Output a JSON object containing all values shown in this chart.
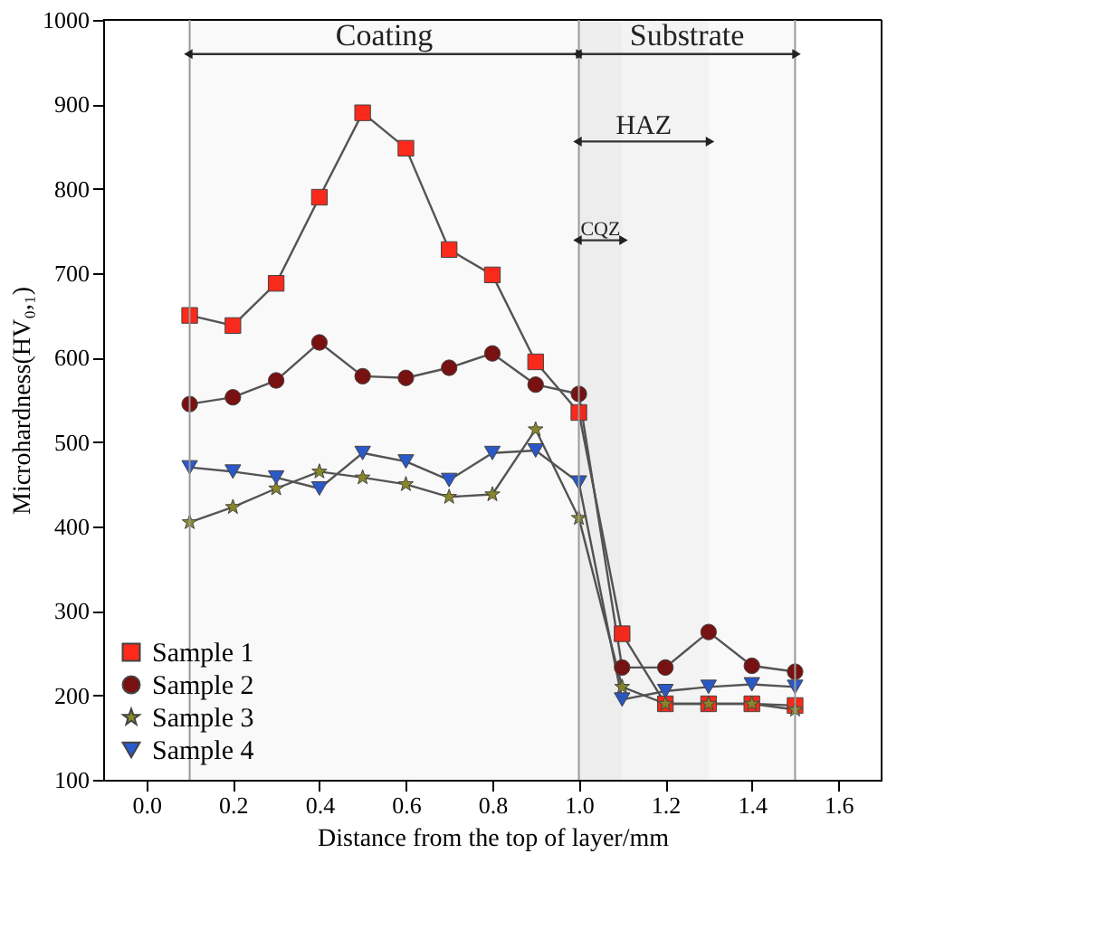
{
  "chart_data": {
    "type": "line",
    "xlabel": "Distance from the top of layer/mm",
    "ylabel": "Microhardness(HV₀,₁)",
    "x": [
      0.1,
      0.2,
      0.3,
      0.4,
      0.5,
      0.6,
      0.7,
      0.8,
      0.9,
      1.0,
      1.1,
      1.2,
      1.3,
      1.4,
      1.5
    ],
    "series": [
      {
        "name": "Sample 1",
        "color": "#ff2a1a",
        "marker": "square",
        "values": [
          650,
          638,
          688,
          790,
          890,
          848,
          728,
          698,
          595,
          535,
          273,
          190,
          190,
          190,
          188
        ]
      },
      {
        "name": "Sample 2",
        "color": "#7a1010",
        "marker": "circle",
        "values": [
          545,
          553,
          573,
          618,
          578,
          576,
          588,
          605,
          568,
          557,
          233,
          233,
          275,
          235,
          228
        ]
      },
      {
        "name": "Sample 3",
        "color": "#8a8a2a",
        "marker": "star",
        "values": [
          405,
          423,
          445,
          465,
          458,
          450,
          435,
          438,
          515,
          410,
          210,
          190,
          190,
          190,
          183
        ]
      },
      {
        "name": "Sample 4",
        "color": "#2a5acc",
        "marker": "triangle",
        "values": [
          470,
          465,
          458,
          445,
          487,
          477,
          455,
          487,
          490,
          452,
          195,
          205,
          210,
          213,
          210
        ]
      }
    ],
    "xlim": [
      -0.1,
      1.7
    ],
    "ylim": [
      100,
      1000
    ],
    "xticks": [
      {
        "value": 0,
        "label": "0.0"
      },
      0.2,
      0.4,
      0.6,
      0.8,
      {
        "value": 1,
        "label": "1.0"
      },
      1.2,
      1.4,
      1.6
    ],
    "yticks": [
      100,
      200,
      300,
      400,
      500,
      600,
      700,
      800,
      900,
      1000
    ],
    "ref_lines": [
      {
        "axis": "x",
        "value": 0.1,
        "color": "#999999"
      },
      {
        "axis": "x",
        "value": 1.0,
        "color": "#999999"
      },
      {
        "axis": "x",
        "value": 1.5,
        "color": "#999999"
      }
    ],
    "bands": [
      {
        "axis": "x",
        "from": 0.1,
        "to": 1.0,
        "label": "Coating"
      },
      {
        "axis": "x",
        "from": 1.0,
        "to": 1.5,
        "label": "Substrate"
      },
      {
        "axis": "x",
        "from": 1.0,
        "to": 1.3,
        "label": "HAZ"
      },
      {
        "axis": "x",
        "from": 1.0,
        "to": 1.1,
        "label": "CQZ"
      }
    ],
    "legend": "bottom left",
    "grid": false,
    "line_style": "solid"
  }
}
